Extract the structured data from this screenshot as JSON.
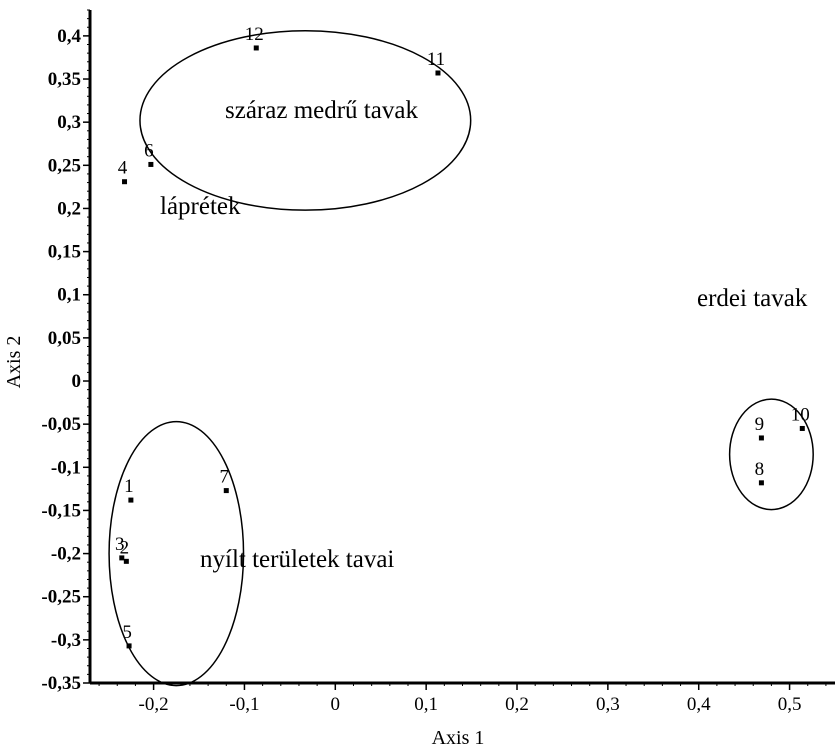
{
  "chart_data": {
    "type": "scatter",
    "title": "",
    "xlabel": "Axis 1",
    "ylabel": "Axis 2",
    "xlim": [
      -0.27,
      0.55
    ],
    "ylim": [
      -0.35,
      0.43
    ],
    "x_ticks": [
      -0.2,
      -0.1,
      0,
      0.1,
      0.2,
      0.3,
      0.4,
      0.5
    ],
    "x_tick_labels": [
      "-0,2",
      "-0,1",
      "0",
      "0,1",
      "0,2",
      "0,3",
      "0,4",
      "0,5"
    ],
    "y_ticks": [
      0.4,
      0.35,
      0.3,
      0.25,
      0.2,
      0.15,
      0.1,
      0.05,
      0,
      -0.05,
      -0.1,
      -0.15,
      -0.2,
      -0.25,
      -0.3,
      -0.35
    ],
    "y_tick_labels": [
      "0,4",
      "0,35",
      "0,3",
      "0,25",
      "0,2",
      "0,15",
      "0,1",
      "0,05",
      "0",
      "-0,05",
      "-0,1",
      "-0,15",
      "-0,2",
      "-0,25",
      "-0,3",
      "-0,35"
    ],
    "grid": false,
    "legend": "none",
    "points": [
      {
        "label": "1",
        "x": -0.225,
        "y": -0.138
      },
      {
        "label": "2",
        "x": -0.23,
        "y": -0.209
      },
      {
        "label": "3",
        "x": -0.235,
        "y": -0.205
      },
      {
        "label": "4",
        "x": -0.232,
        "y": 0.231
      },
      {
        "label": "5",
        "x": -0.227,
        "y": -0.307
      },
      {
        "label": "6",
        "x": -0.203,
        "y": 0.251
      },
      {
        "label": "7",
        "x": -0.12,
        "y": -0.127
      },
      {
        "label": "8",
        "x": 0.469,
        "y": -0.118
      },
      {
        "label": "9",
        "x": 0.469,
        "y": -0.066
      },
      {
        "label": "10",
        "x": 0.514,
        "y": -0.055
      },
      {
        "label": "11",
        "x": 0.113,
        "y": 0.357
      },
      {
        "label": "12",
        "x": -0.087,
        "y": 0.386
      }
    ],
    "groups": [
      {
        "label": "száraz medrű tavak",
        "ellipse": {
          "cx": -0.033,
          "cy": 0.302,
          "rx": 0.182,
          "ry": 0.104
        }
      },
      {
        "label": "láprétek"
      },
      {
        "label": "erdei tavak",
        "ellipse": {
          "cx": 0.48,
          "cy": -0.085,
          "rx": 0.046,
          "ry": 0.064
        }
      },
      {
        "label": "nyílt területek tavai",
        "ellipse": {
          "cx": -0.175,
          "cy": -0.2,
          "rx": 0.074,
          "ry": 0.153
        }
      }
    ]
  }
}
